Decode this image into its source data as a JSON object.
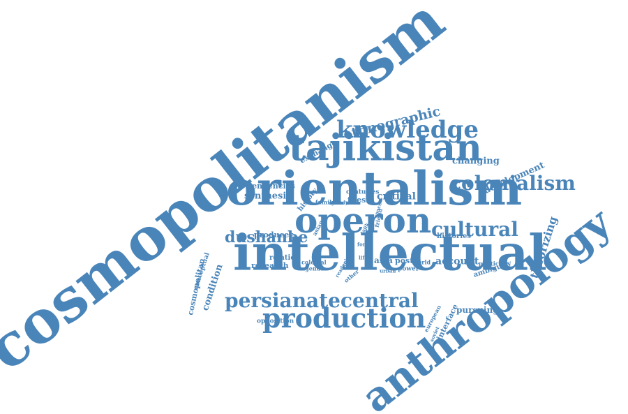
{
  "color": "#4a85b9",
  "words": [
    {
      "id": "cosmopolitanism",
      "text": "cosmopolitanism"
    },
    {
      "id": "anthropology",
      "text": "anthropology"
    },
    {
      "id": "intellectual",
      "text": "intellectual"
    },
    {
      "id": "orientalism",
      "text": "orientalism"
    },
    {
      "id": "tajikistan",
      "text": "tajikistan"
    },
    {
      "id": "operon",
      "text": "operon"
    },
    {
      "id": "production",
      "text": "production"
    },
    {
      "id": "persianatecentral",
      "text": "persianatecentral"
    },
    {
      "id": "knowledge",
      "text": "knowledge"
    },
    {
      "id": "colonialism",
      "text": "colonialism"
    },
    {
      "id": "cultural",
      "text": "cultural"
    },
    {
      "id": "dushanbe",
      "text": "dushanbe"
    },
    {
      "id": "ethnographic",
      "text": "ethnographic"
    },
    {
      "id": "theorizing",
      "text": "theorizing"
    },
    {
      "id": "development",
      "text": "development"
    },
    {
      "id": "changing",
      "text": "changing"
    },
    {
      "id": "exchange",
      "text": "exchange"
    },
    {
      "id": "tendencies",
      "text": "tendencies"
    },
    {
      "id": "synthesis",
      "text": "synthesis"
    },
    {
      "id": "history",
      "text": "history"
    },
    {
      "id": "family",
      "text": "family"
    },
    {
      "id": "study",
      "text": "study"
    },
    {
      "id": "thesis",
      "text": "thesis"
    },
    {
      "id": "centuries",
      "text": "centuries"
    },
    {
      "id": "critical",
      "text": "critical"
    },
    {
      "id": "asian",
      "text": "asian"
    },
    {
      "id": "producer",
      "text": "producer"
    },
    {
      "id": "conceptual",
      "text": "conceptual"
    },
    {
      "id": "cosmopolitan",
      "text": "cosmopolitan"
    },
    {
      "id": "condition",
      "text": "condition"
    },
    {
      "id": "relation",
      "text": "relation"
    },
    {
      "id": "research",
      "text": "research"
    },
    {
      "id": "colonial",
      "text": "colonial"
    },
    {
      "id": "agenda",
      "text": "agenda"
    },
    {
      "id": "other",
      "text": "other"
    },
    {
      "id": "asia",
      "text": "asia"
    },
    {
      "id": "urban",
      "text": "urban"
    },
    {
      "id": "post",
      "text": "post"
    },
    {
      "id": "world",
      "text": "world"
    },
    {
      "id": "account",
      "text": "account"
    },
    {
      "id": "power",
      "text": "power"
    },
    {
      "id": "histories",
      "text": "histories"
    },
    {
      "id": "political",
      "text": "political"
    },
    {
      "id": "ambiguity",
      "text": "ambiguity"
    },
    {
      "id": "european",
      "text": "european"
    },
    {
      "id": "interface",
      "text": "interface"
    },
    {
      "id": "pursuing",
      "text": "pursuing"
    },
    {
      "id": "opposition",
      "text": "opposition"
    },
    {
      "id": "form",
      "text": "form"
    },
    {
      "id": "life",
      "text": "life"
    },
    {
      "id": "space",
      "text": "space"
    },
    {
      "id": "reader",
      "text": "reader"
    },
    {
      "id": "union",
      "text": "union"
    },
    {
      "id": "tajik",
      "text": "tajik"
    },
    {
      "id": "friend",
      "text": "friend"
    },
    {
      "id": "soviet",
      "text": "soviet"
    }
  ]
}
